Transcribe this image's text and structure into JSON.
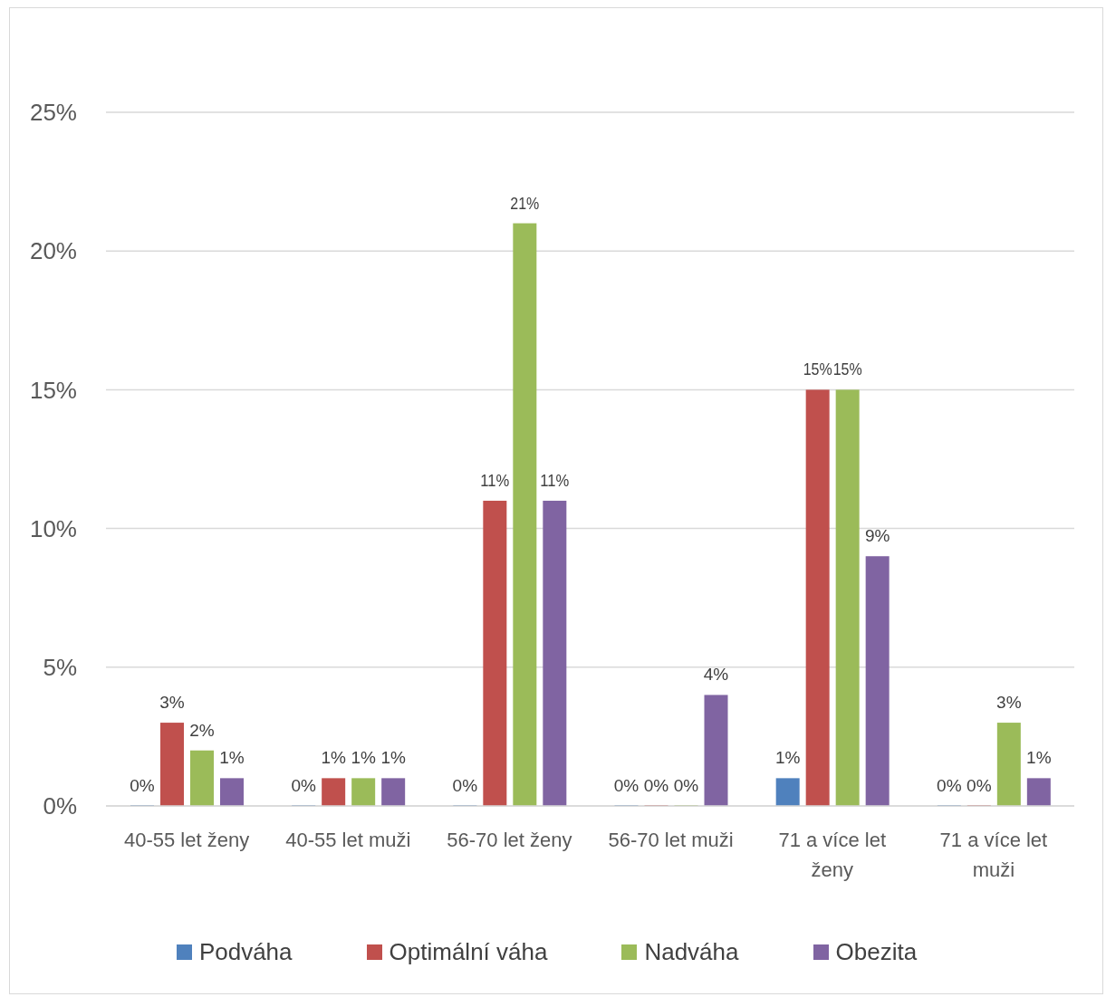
{
  "chart_data": {
    "type": "bar",
    "categories": [
      "40-55 let ženy",
      "40-55 let muži",
      "56-70 let ženy",
      "56-70 let muži",
      "71 a více let ženy",
      "71 a více let muži"
    ],
    "series": [
      {
        "name": "Podváha",
        "color": "#4f81bd",
        "values": [
          0,
          0,
          0,
          0,
          1,
          0
        ],
        "value_labels": [
          "0%",
          "0%",
          "0%",
          "0%",
          "1%",
          "0%"
        ]
      },
      {
        "name": "Optimální váha",
        "color": "#c0504d",
        "values": [
          3,
          1,
          11,
          0,
          15,
          0
        ],
        "value_labels": [
          "3%",
          "1%",
          "11%",
          "0%",
          "15%",
          "0%"
        ]
      },
      {
        "name": "Nadváha",
        "color": "#9bbb59",
        "values": [
          2,
          1,
          21,
          0,
          15,
          3
        ],
        "value_labels": [
          "2%",
          "1%",
          "21%",
          "0%",
          "15%",
          "3%"
        ]
      },
      {
        "name": "Obezita",
        "color": "#8064a2",
        "values": [
          1,
          1,
          11,
          4,
          9,
          1
        ],
        "value_labels": [
          "1%",
          "1%",
          "11%",
          "4%",
          "9%",
          "1%"
        ]
      }
    ],
    "ylim": [
      0,
      25
    ],
    "yticks": [
      {
        "value": 0,
        "label": "0%"
      },
      {
        "value": 5,
        "label": "5%"
      },
      {
        "value": 10,
        "label": "10%"
      },
      {
        "value": 15,
        "label": "15%"
      },
      {
        "value": 20,
        "label": "20%"
      },
      {
        "value": 25,
        "label": "25%"
      }
    ],
    "grid": "y",
    "legend": "bottom"
  }
}
